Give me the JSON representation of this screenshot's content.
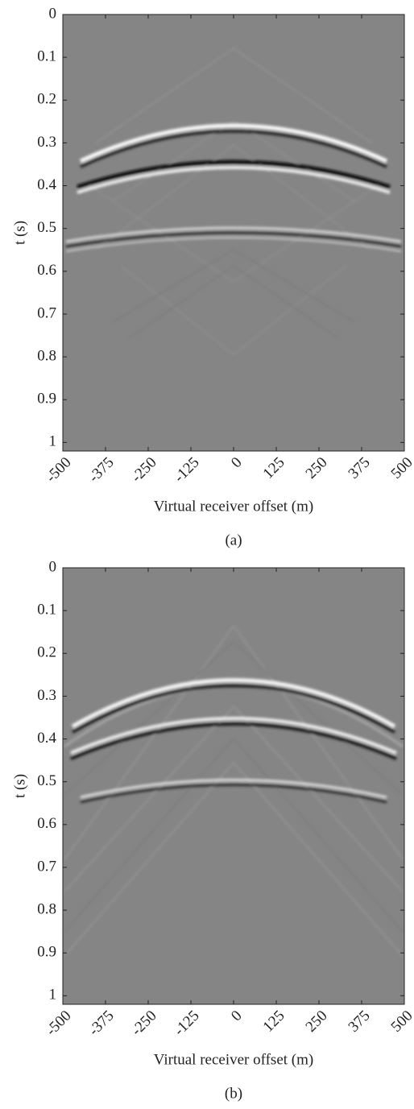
{
  "chart_data": [
    {
      "type": "image",
      "caption": "(a)",
      "xlabel": "Virtual receiver offset (m)",
      "ylabel": "t (s)",
      "xlim": [
        -500,
        500
      ],
      "xticks": [
        -500,
        -375,
        -250,
        -125,
        0,
        125,
        250,
        375,
        500
      ],
      "ylim": [
        1.02,
        0
      ],
      "yticks": [
        0,
        0.1,
        0.2,
        0.3,
        0.4,
        0.5,
        0.6,
        0.7,
        0.8,
        0.9,
        1
      ]
    },
    {
      "type": "image",
      "caption": "(b)",
      "xlabel": "Virtual receiver offset (m)",
      "ylabel": "t (s)",
      "xlim": [
        -500,
        500
      ],
      "xticks": [
        -500,
        -375,
        -250,
        -125,
        0,
        125,
        250,
        375,
        500
      ],
      "ylim": [
        1.02,
        0
      ],
      "yticks": [
        0,
        0.1,
        0.2,
        0.3,
        0.4,
        0.5,
        0.6,
        0.7,
        0.8,
        0.9,
        1
      ]
    }
  ]
}
